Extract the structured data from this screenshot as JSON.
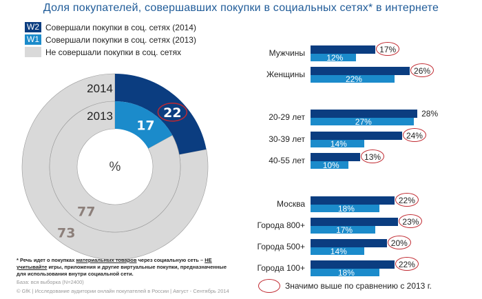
{
  "title": "Доля покупателей, совершавших покупки в социальных сетях* в интернете",
  "colors": {
    "w2": "#0b3d80",
    "w1": "#1b8bcb",
    "none": "#d9d9d9",
    "highlight": "#c0282f",
    "title": "#1f5b98"
  },
  "legend": [
    {
      "badge": "W2",
      "label": "Совершали покупки в соц. сетях (2014)"
    },
    {
      "badge": "W1",
      "label": "Совершали покупки в соц. сетях (2013)"
    },
    {
      "badge": "",
      "label": "Не совершали покупки в соц. сетях"
    }
  ],
  "chart_data": [
    {
      "type": "pie",
      "subtype": "donut",
      "center_label": "%",
      "rings": [
        {
          "name": "2014",
          "values": [
            22,
            73
          ],
          "labels": [
            "22",
            "73"
          ],
          "highlight": [
            true,
            false
          ]
        },
        {
          "name": "2013",
          "values": [
            17,
            77
          ],
          "labels": [
            "17",
            "77"
          ],
          "highlight": [
            false,
            false
          ]
        }
      ]
    },
    {
      "type": "bar",
      "orientation": "horizontal",
      "categories": [
        "Мужчины",
        "Женщины",
        "20-29 лет",
        "30-39 лет",
        "40-55 лет",
        "Москва",
        "Города 800+",
        "Города 500+",
        "Города 100+"
      ],
      "groups": [
        [
          0,
          1
        ],
        [
          2,
          3,
          4
        ],
        [
          5,
          6,
          7,
          8
        ]
      ],
      "series": [
        {
          "name": "2014",
          "values": [
            17,
            26,
            28,
            24,
            13,
            22,
            23,
            20,
            22
          ],
          "labels": [
            "17%",
            "26%",
            "28%",
            "24%",
            "13%",
            "22%",
            "23%",
            "20%",
            "22%"
          ],
          "significant": [
            true,
            true,
            false,
            true,
            true,
            true,
            true,
            true,
            true
          ]
        },
        {
          "name": "2013",
          "values": [
            12,
            22,
            27,
            14,
            10,
            18,
            17,
            14,
            18
          ],
          "labels": [
            "12%",
            "22%",
            "27%",
            "14%",
            "10%",
            "18%",
            "17%",
            "14%",
            "18%"
          ]
        }
      ],
      "significance_legend": "Значимо выше по сравнению с 2013 г."
    }
  ],
  "footnote": {
    "p1": "* Речь идет о покупках ",
    "u1": "материальных товаров",
    "p2": " через социальную сеть – ",
    "u2": "НЕ учитывайте",
    "p3": " игры, приложения и другие виртуальные покупки, предназначенные для использования внутри социальной сети.",
    "base": "База: вся выборка (N=2400)",
    "source": "© GfK | Исследование аудитории онлайн покупателей в России | Август - Сентябрь 2014"
  }
}
